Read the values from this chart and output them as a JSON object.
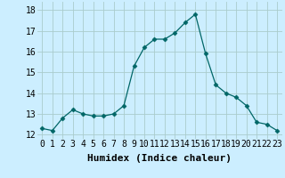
{
  "x": [
    0,
    1,
    2,
    3,
    4,
    5,
    6,
    7,
    8,
    9,
    10,
    11,
    12,
    13,
    14,
    15,
    16,
    17,
    18,
    19,
    20,
    21,
    22,
    23
  ],
  "y": [
    12.3,
    12.2,
    12.8,
    13.2,
    13.0,
    12.9,
    12.9,
    13.0,
    13.4,
    15.3,
    16.2,
    16.6,
    16.6,
    16.9,
    17.4,
    17.8,
    15.9,
    14.4,
    14.0,
    13.8,
    13.4,
    12.6,
    12.5,
    12.2
  ],
  "xlabel": "Humidex (Indice chaleur)",
  "xlim": [
    -0.5,
    23.5
  ],
  "ylim": [
    11.8,
    18.4
  ],
  "yticks": [
    12,
    13,
    14,
    15,
    16,
    17,
    18
  ],
  "xticks": [
    0,
    1,
    2,
    3,
    4,
    5,
    6,
    7,
    8,
    9,
    10,
    11,
    12,
    13,
    14,
    15,
    16,
    17,
    18,
    19,
    20,
    21,
    22,
    23
  ],
  "line_color": "#006666",
  "marker": "D",
  "marker_size": 2.5,
  "bg_color": "#cceeff",
  "grid_color": "#aacccc",
  "xlabel_fontsize": 8,
  "tick_fontsize": 7
}
